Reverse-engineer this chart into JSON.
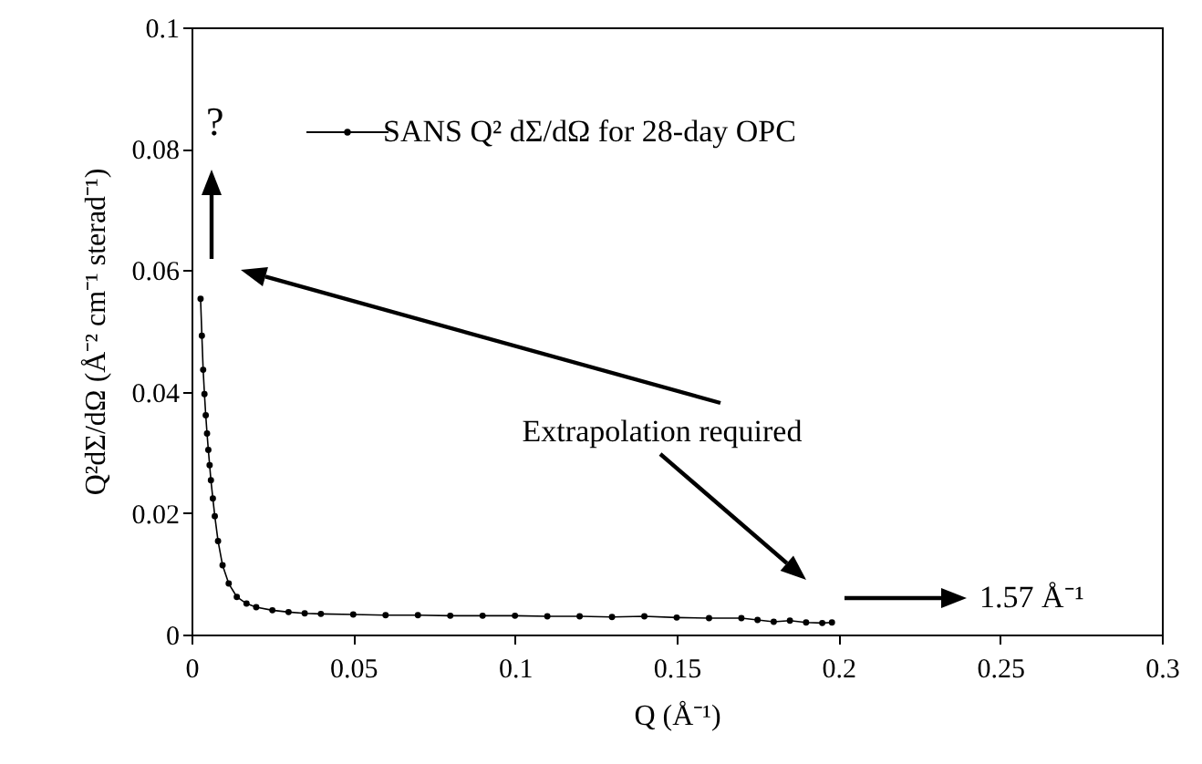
{
  "chart_data": {
    "type": "line",
    "xlabel": "Q (Å⁻¹)",
    "ylabel": "Q²dΣ/dΩ (Å⁻² cm⁻¹ sterad⁻¹)",
    "x": [
      0.0028,
      0.0032,
      0.0036,
      0.004,
      0.0044,
      0.0048,
      0.0052,
      0.0056,
      0.006,
      0.0066,
      0.0072,
      0.0082,
      0.0096,
      0.0115,
      0.014,
      0.017,
      0.02,
      0.025,
      0.03,
      0.035,
      0.04,
      0.05,
      0.06,
      0.07,
      0.08,
      0.09,
      0.1,
      0.11,
      0.12,
      0.13,
      0.14,
      0.15,
      0.16,
      0.17,
      0.175,
      0.18,
      0.185,
      0.19,
      0.195,
      0.198
    ],
    "series": [
      {
        "name": "SANS Q² dΣ/dΩ for 28-day OPC",
        "color": "#000000",
        "values": [
          0.0553,
          0.0492,
          0.0436,
          0.0396,
          0.0361,
          0.0331,
          0.0304,
          0.0279,
          0.0254,
          0.0224,
          0.0195,
          0.0154,
          0.0114,
          0.0084,
          0.0062,
          0.0051,
          0.0045,
          0.004,
          0.0037,
          0.0035,
          0.0034,
          0.0033,
          0.0032,
          0.0032,
          0.0031,
          0.0031,
          0.0031,
          0.003,
          0.003,
          0.0029,
          0.003,
          0.0028,
          0.0027,
          0.0027,
          0.0024,
          0.0021,
          0.0023,
          0.002,
          0.0019,
          0.002
        ]
      }
    ],
    "xlim": [
      0,
      0.3
    ],
    "xticks": [
      0,
      0.05,
      0.1,
      0.15,
      0.2,
      0.25,
      0.3
    ],
    "ylim": [
      0,
      0.1
    ],
    "yticks": [
      0,
      0.02,
      0.04,
      0.06,
      0.08,
      0.1
    ],
    "grid": false,
    "legend": "top",
    "marker": "circle",
    "line_style": "solid",
    "annotations": [
      "?",
      "Extrapolation required",
      "1.57 Å⁻¹"
    ]
  }
}
